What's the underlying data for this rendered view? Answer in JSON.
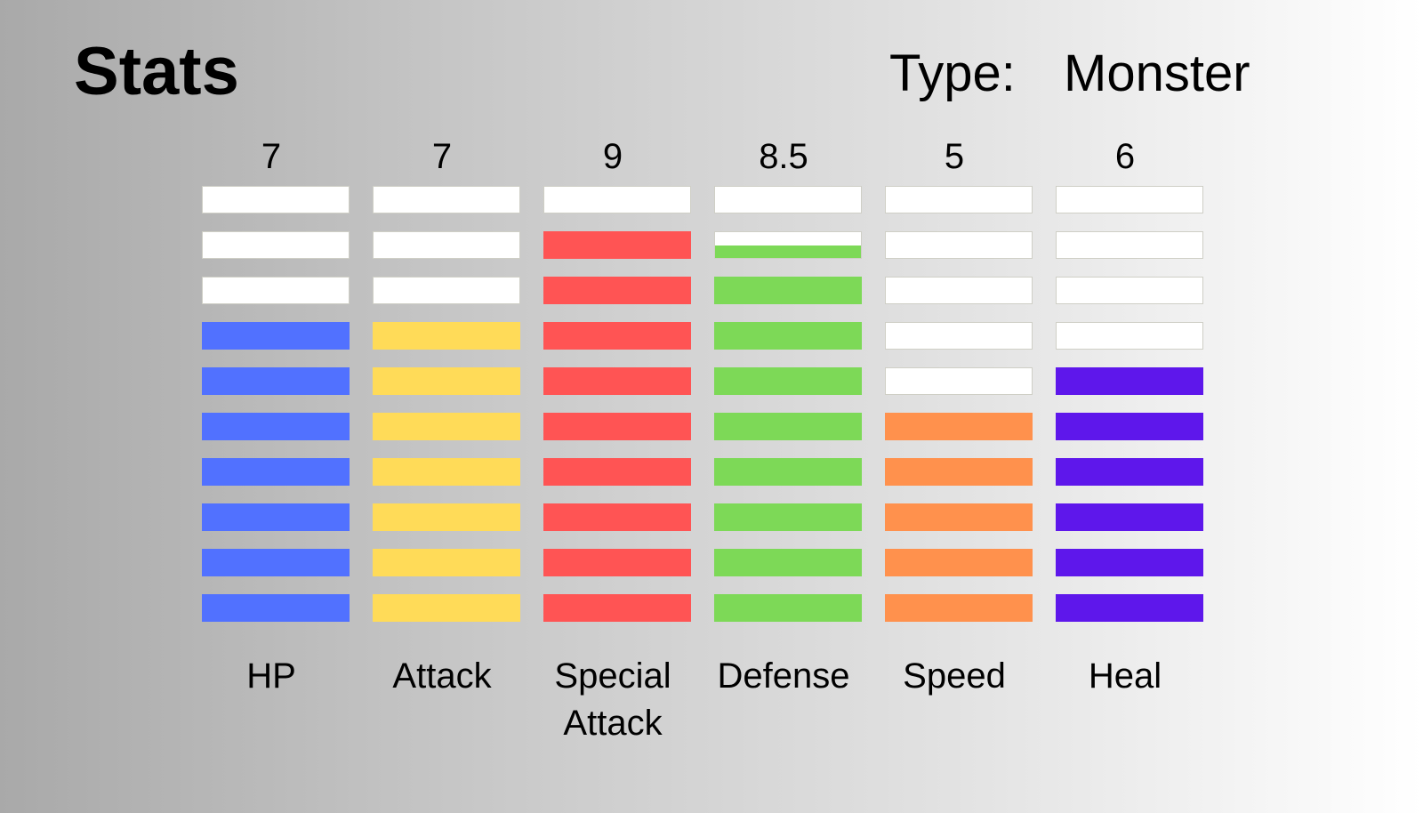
{
  "header": {
    "title": "Stats",
    "type_label": "Type:",
    "type_value": "Monster"
  },
  "stats": [
    {
      "label": "HP",
      "value_text": "7",
      "value": 7,
      "max": 10,
      "color": "#5171ff"
    },
    {
      "label": "Attack",
      "value_text": "7",
      "value": 7,
      "max": 10,
      "color": "#ffdb58"
    },
    {
      "label": "Special Attack",
      "value_text": "9",
      "value": 9,
      "max": 10,
      "color": "#ff5454"
    },
    {
      "label": "Defense",
      "value_text": "8.5",
      "value": 8.5,
      "max": 10,
      "color": "#7dd957"
    },
    {
      "label": "Speed",
      "value_text": "5",
      "value": 5,
      "max": 10,
      "color": "#ff914d"
    },
    {
      "label": "Heal",
      "value_text": "6",
      "value": 6,
      "max": 10,
      "color": "#5e17eb"
    }
  ]
}
